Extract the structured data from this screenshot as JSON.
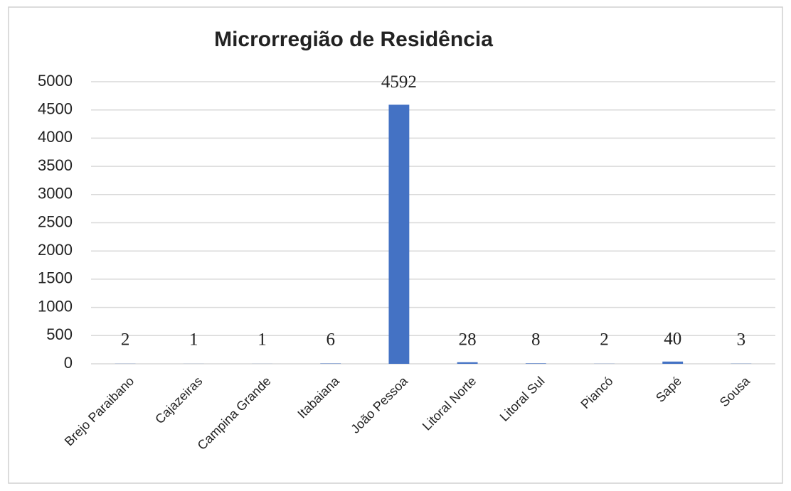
{
  "chart_data": {
    "type": "bar",
    "title": "Microrregião de Residência",
    "categories": [
      "Brejo Paraibano",
      "Cajazeiras",
      "Campina Grande",
      "Itabaiana",
      "João Pessoa",
      "Litoral Norte",
      "Litoral Sul",
      "Piancó",
      "Sapé",
      "Sousa"
    ],
    "values": [
      2,
      1,
      1,
      6,
      4592,
      28,
      8,
      2,
      40,
      3
    ],
    "color": "#4472c4",
    "ylim": [
      0,
      5000
    ],
    "yticks": [
      0,
      500,
      1000,
      1500,
      2000,
      2500,
      3000,
      3500,
      4000,
      4500,
      5000
    ],
    "grid": true
  }
}
